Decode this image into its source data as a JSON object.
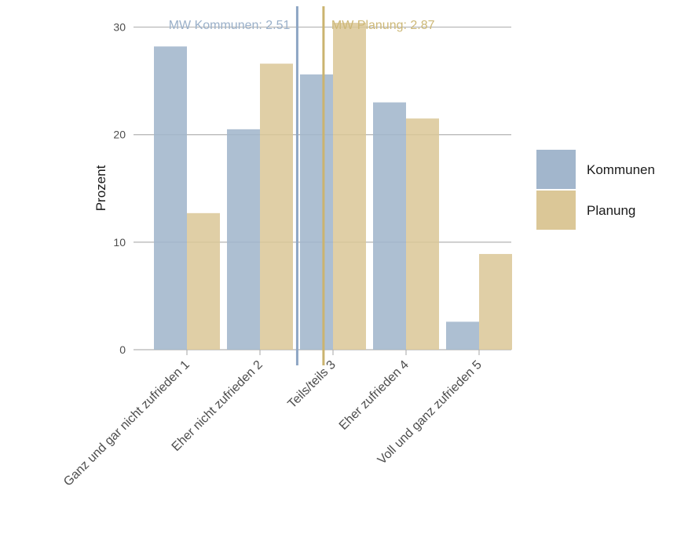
{
  "chart_data": {
    "type": "bar",
    "ylabel": "Prozent",
    "xlabel": "",
    "ylim": [
      0,
      31.5
    ],
    "yticks": [
      0,
      10,
      20,
      30
    ],
    "grid": "horizontal",
    "categories": [
      "Ganz und gar nicht zufrieden 1",
      "Eher nicht zufrieden 2",
      "Teils/teils 3",
      "Eher zufrieden 4",
      "Voll und ganz zufrieden 5"
    ],
    "series": [
      {
        "name": "Kommunen",
        "color": "#a2b6cc",
        "values": [
          28.2,
          20.5,
          25.6,
          23.0,
          2.6
        ]
      },
      {
        "name": "Planung",
        "color": "#dbc797",
        "values": [
          12.7,
          26.6,
          30.4,
          21.5,
          8.9
        ]
      }
    ],
    "mean_lines": [
      {
        "label": "MW Kommunen: 2.51",
        "value": 2.51,
        "color": "#8ea6c4",
        "label_color": "#9ab0c9"
      },
      {
        "label": "MW Planung: 2.87",
        "value": 2.87,
        "color": "#cbb46f",
        "label_color": "#cdb877"
      }
    ],
    "legend": {
      "position": "right",
      "entries": [
        "Kommunen",
        "Planung"
      ]
    }
  }
}
